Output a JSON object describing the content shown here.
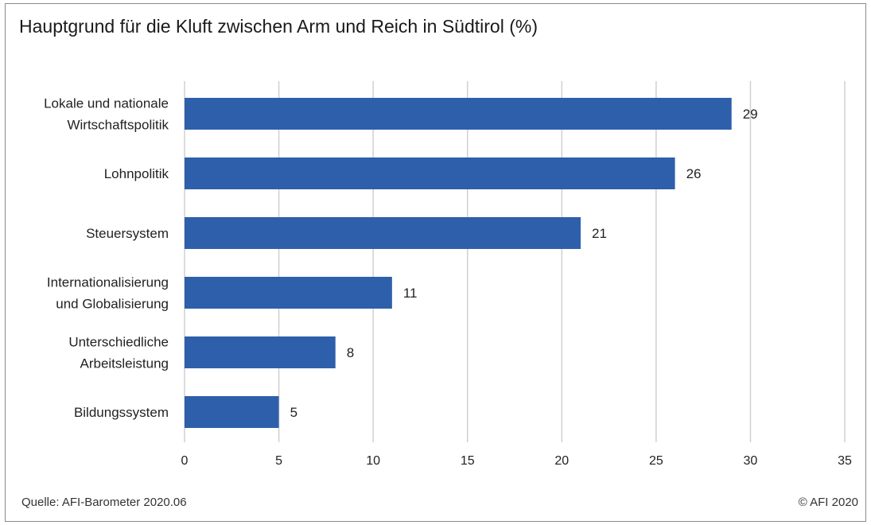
{
  "title": "Hauptgrund für die Kluft zwischen Arm und Reich in Südtirol (%)",
  "source": "Quelle: AFI-Barometer 2020.06",
  "copyright": "© AFI 2020",
  "colors": {
    "bar": "#2e5faa",
    "grid": "#d0d0d0",
    "text": "#222222"
  },
  "chart_data": {
    "type": "bar",
    "orientation": "horizontal",
    "title": "Hauptgrund für die Kluft zwischen Arm und Reich in Südtirol (%)",
    "categories": [
      [
        "Lokale und nationale",
        "Wirtschaftspolitik"
      ],
      [
        "Lohnpolitik"
      ],
      [
        "Steuersystem"
      ],
      [
        "Internationalisierung",
        "und Globalisierung"
      ],
      [
        "Unterschiedliche",
        "Arbeitsleistung"
      ],
      [
        "Bildungssystem"
      ]
    ],
    "values": [
      29,
      26,
      21,
      11,
      8,
      5
    ],
    "xlim": [
      0,
      35
    ],
    "xticks": [
      0,
      5,
      10,
      15,
      20,
      25,
      30,
      35
    ],
    "grid": true,
    "data_labels": true,
    "legend": "none"
  }
}
